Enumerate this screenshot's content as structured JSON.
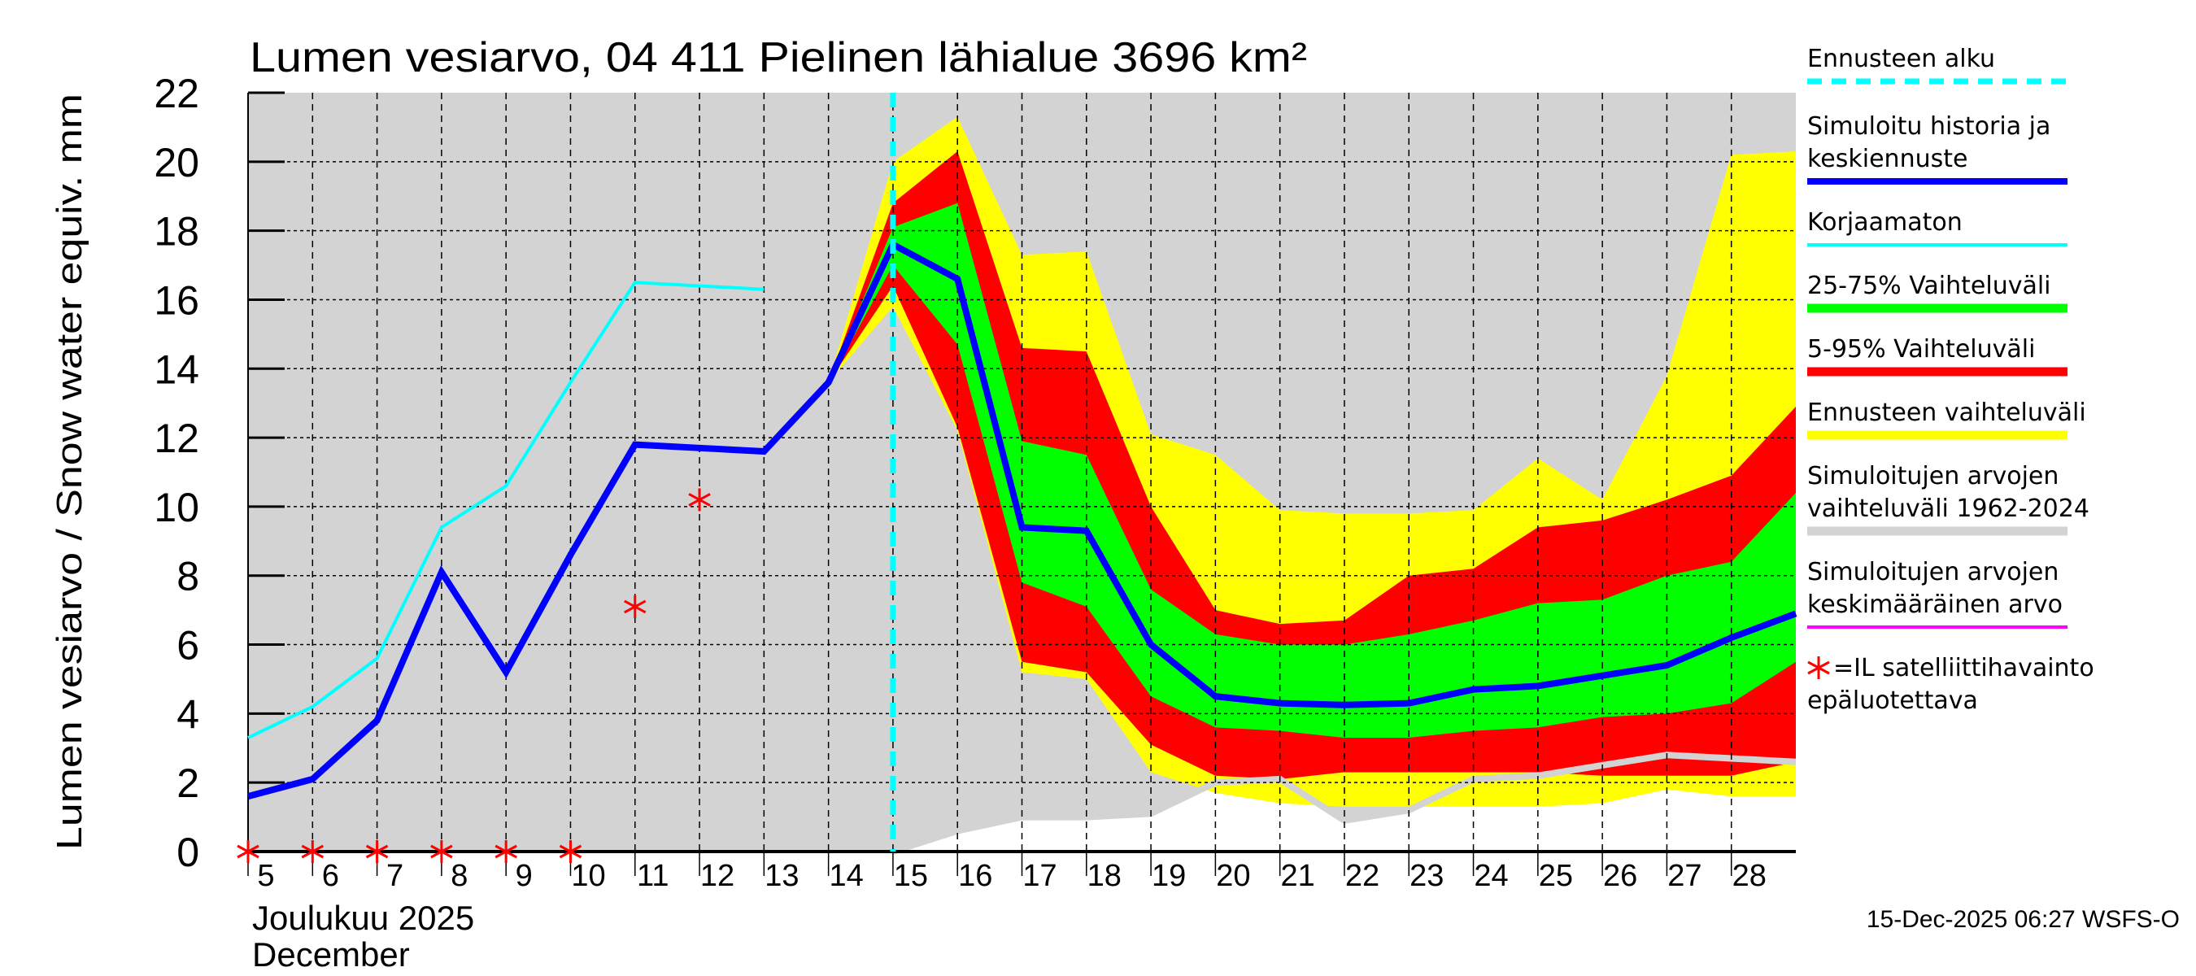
{
  "chart_data": {
    "type": "area",
    "title": "Lumen vesiarvo, 04 411 Pielinen lähialue 3696 km²",
    "ylabel": "Lumen vesiarvo / Snow water equiv.    mm",
    "xlabel_fi": "Joulukuu  2025",
    "xlabel_en": "December",
    "ylim": [
      0,
      22
    ],
    "xlim": [
      5,
      29
    ],
    "yticks": [
      "0",
      "2",
      "4",
      "6",
      "8",
      "10",
      "12",
      "14",
      "16",
      "18",
      "20",
      "22"
    ],
    "xticks": [
      "5",
      "6",
      "7",
      "8",
      "9",
      "10",
      "11",
      "12",
      "13",
      "14",
      "15",
      "16",
      "17",
      "18",
      "19",
      "20",
      "21",
      "22",
      "23",
      "24",
      "25",
      "26",
      "27",
      "28"
    ],
    "forecast_start": 15,
    "grid": true,
    "series": {
      "history_range": {
        "name": "Simuloitujen arvojen vaihteluväli 1962-2024",
        "color": "#d3d3d3",
        "x": [
          5,
          15,
          16,
          17,
          18,
          19,
          20,
          21,
          22,
          23,
          24,
          25,
          26,
          27,
          28,
          29
        ],
        "lower": [
          0,
          0,
          0.6,
          1.0,
          1.0,
          1.1,
          2.0,
          2.1,
          0.9,
          1.2,
          2.1,
          2.2,
          2.5,
          2.8,
          2.7,
          2.6
        ],
        "upper": [
          22,
          22,
          22,
          22,
          22,
          22,
          22,
          22,
          22,
          22,
          22,
          22,
          22,
          22,
          22,
          22
        ]
      },
      "forecast_range": {
        "name": "Ennusteen vaihteluväli",
        "color": "#ffff00",
        "x": [
          14,
          15,
          16,
          17,
          18,
          19,
          20,
          21,
          22,
          23,
          24,
          25,
          26,
          27,
          28,
          29
        ],
        "lower": [
          13.6,
          15.8,
          12.2,
          5.2,
          5.0,
          2.3,
          1.7,
          1.4,
          1.3,
          1.3,
          1.3,
          1.3,
          1.4,
          1.8,
          1.6,
          1.6
        ],
        "upper": [
          13.6,
          20.0,
          21.3,
          17.3,
          17.4,
          12.1,
          11.5,
          9.9,
          9.8,
          9.8,
          9.9,
          11.4,
          10.2,
          13.8,
          20.2,
          20.3
        ]
      },
      "p5_95": {
        "name": "5-95% Vaihteluväli",
        "color": "#ff0000",
        "x": [
          14,
          15,
          16,
          17,
          18,
          19,
          20,
          21,
          22,
          23,
          24,
          25,
          26,
          27,
          28,
          29
        ],
        "lower": [
          13.6,
          16.4,
          12.3,
          5.5,
          5.2,
          3.1,
          2.2,
          2.1,
          2.3,
          2.3,
          2.3,
          2.3,
          2.2,
          2.2,
          2.2,
          2.6
        ],
        "upper": [
          13.6,
          18.8,
          20.3,
          14.6,
          14.5,
          10.0,
          7.0,
          6.6,
          6.7,
          8.0,
          8.2,
          9.4,
          9.6,
          10.2,
          10.9,
          12.9
        ]
      },
      "p25_75": {
        "name": "25-75% Vaihteluväli",
        "color": "#00ff00",
        "x": [
          14,
          15,
          16,
          17,
          18,
          19,
          20,
          21,
          22,
          23,
          24,
          25,
          26,
          27,
          28,
          29
        ],
        "lower": [
          13.6,
          17.0,
          14.7,
          7.8,
          7.1,
          4.5,
          3.6,
          3.5,
          3.3,
          3.3,
          3.5,
          3.6,
          3.9,
          4.0,
          4.3,
          5.5
        ],
        "upper": [
          13.6,
          18.1,
          18.8,
          11.9,
          11.5,
          7.6,
          6.3,
          6.0,
          6.0,
          6.3,
          6.7,
          7.2,
          7.3,
          8.0,
          8.4,
          10.4
        ]
      },
      "history_min_line": {
        "color": "#d3d3d3",
        "x": [
          15,
          16,
          17,
          18,
          19,
          20,
          21,
          22,
          23,
          24,
          25,
          26,
          27,
          28,
          29
        ],
        "y": [
          0,
          0.6,
          1.0,
          1.0,
          1.1,
          2.0,
          2.1,
          0.9,
          1.2,
          2.1,
          2.2,
          2.5,
          2.8,
          2.7,
          2.6
        ]
      },
      "uncorrected": {
        "name": "Korjaamaton",
        "color": "#00ffff",
        "x": [
          5,
          6,
          7,
          8,
          9,
          10,
          11,
          12,
          13
        ],
        "y": [
          3.3,
          4.2,
          5.6,
          9.4,
          10.6,
          13.6,
          16.5,
          16.4,
          16.3
        ]
      },
      "simulated": {
        "name": "Simuloitu historia ja keskiennuste",
        "color": "#0000ff",
        "x": [
          5,
          6,
          7,
          8,
          9,
          10,
          11,
          12,
          13,
          14,
          15,
          16,
          17,
          18,
          19,
          20,
          21,
          22,
          23,
          24,
          25,
          26,
          27,
          28,
          29
        ],
        "y": [
          1.6,
          2.1,
          3.8,
          8.1,
          5.2,
          8.6,
          11.8,
          11.7,
          11.6,
          13.6,
          17.6,
          16.6,
          9.4,
          9.3,
          6.0,
          4.5,
          4.3,
          4.25,
          4.3,
          4.7,
          4.8,
          5.1,
          5.4,
          6.2,
          6.9
        ]
      },
      "satellite": {
        "name": "=IL satelliittihavainto epäluotettava",
        "color": "#ff0000",
        "x": [
          5,
          6,
          7,
          8,
          9,
          10,
          11,
          12
        ],
        "y": [
          0,
          0,
          0,
          0,
          0,
          0,
          7.1,
          10.2
        ]
      }
    },
    "legend": [
      {
        "label": "Ennusteen alku",
        "color": "#00ffff",
        "style": "dashed"
      },
      {
        "label": "Simuloitu historia ja",
        "label2": "keskiennuste",
        "color": "#0000ff",
        "style": "thick"
      },
      {
        "label": "Korjaamaton",
        "color": "#00ffff",
        "style": "thin"
      },
      {
        "label": "25-75% Vaihteluväli",
        "color": "#00ff00",
        "style": "band"
      },
      {
        "label": "5-95% Vaihteluväli",
        "color": "#ff0000",
        "style": "band"
      },
      {
        "label": "Ennusteen vaihteluväli",
        "color": "#ffff00",
        "style": "band"
      },
      {
        "label": "Simuloitujen arvojen",
        "label2": "vaihteluväli 1962-2024",
        "color": "#d3d3d3",
        "style": "band"
      },
      {
        "label": "Simuloitujen arvojen",
        "label2": "keskimääräinen arvo",
        "color": "#ff00ff",
        "style": "thin"
      },
      {
        "label": "=IL satelliittihavainto",
        "label2": "epäluotettava",
        "color": "#ff0000",
        "style": "star"
      }
    ],
    "legend_position": "right",
    "footer": "15-Dec-2025 06:27 WSFS-O"
  }
}
